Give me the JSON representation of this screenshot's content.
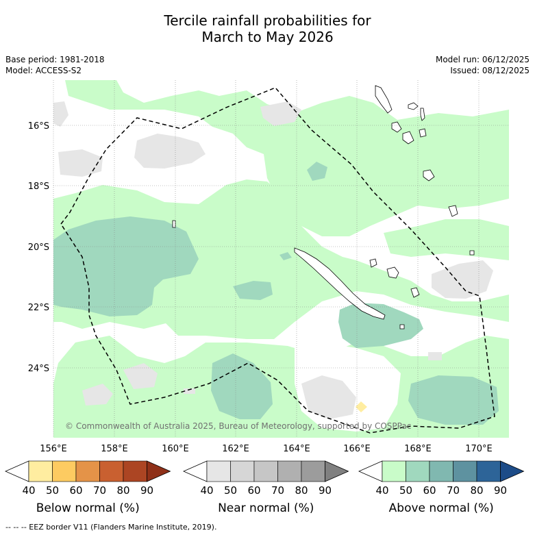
{
  "title": {
    "line1": "Tercile rainfall probabilities for",
    "line2": "March to May 2026"
  },
  "meta_left": {
    "base_period": "Base period: 1981-2018",
    "model": "Model: ACCESS-S2"
  },
  "meta_right": {
    "model_run": "Model run: 06/12/2025",
    "issued": "Issued: 08/12/2025"
  },
  "map": {
    "lat_ticks": [
      "16°S",
      "18°S",
      "20°S",
      "22°S",
      "24°S"
    ],
    "lon_ticks": [
      "156°E",
      "158°E",
      "160°E",
      "162°E",
      "164°E",
      "166°E",
      "168°E",
      "170°E"
    ],
    "copyright": "© Commonwealth of Australia 2025, Bureau of Meteorology, supported by COSPPac"
  },
  "colorbars": [
    {
      "label": "Below normal (%)",
      "ticks": [
        "40",
        "50",
        "60",
        "70",
        "80",
        "90"
      ],
      "colors": [
        "#ffffff",
        "#ffeda0",
        "#fdcb61",
        "#e49348",
        "#c96030",
        "#ac4523",
        "#8f3018"
      ]
    },
    {
      "label": "Near normal (%)",
      "ticks": [
        "40",
        "50",
        "60",
        "70",
        "80",
        "90"
      ],
      "colors": [
        "#ffffff",
        "#e6e6e6",
        "#d6d6d6",
        "#c6c6c6",
        "#b0b0b0",
        "#9c9c9c",
        "#808080"
      ]
    },
    {
      "label": "Above normal (%)",
      "ticks": [
        "40",
        "50",
        "60",
        "70",
        "80",
        "90"
      ],
      "colors": [
        "#ffffff",
        "#c9fcc9",
        "#a0d8be",
        "#80b8b0",
        "#5e92a0",
        "#2d6498",
        "#1d4c88"
      ]
    }
  ],
  "footer": "--  --  -- EEZ border V11 (Flanders Marine Institute, 2019).",
  "colors": {
    "above_40_50": "#c9fcc9",
    "above_50_60": "#a0d8be",
    "near_40_50": "#e6e6e6",
    "below_40_50": "#ffeda0"
  }
}
